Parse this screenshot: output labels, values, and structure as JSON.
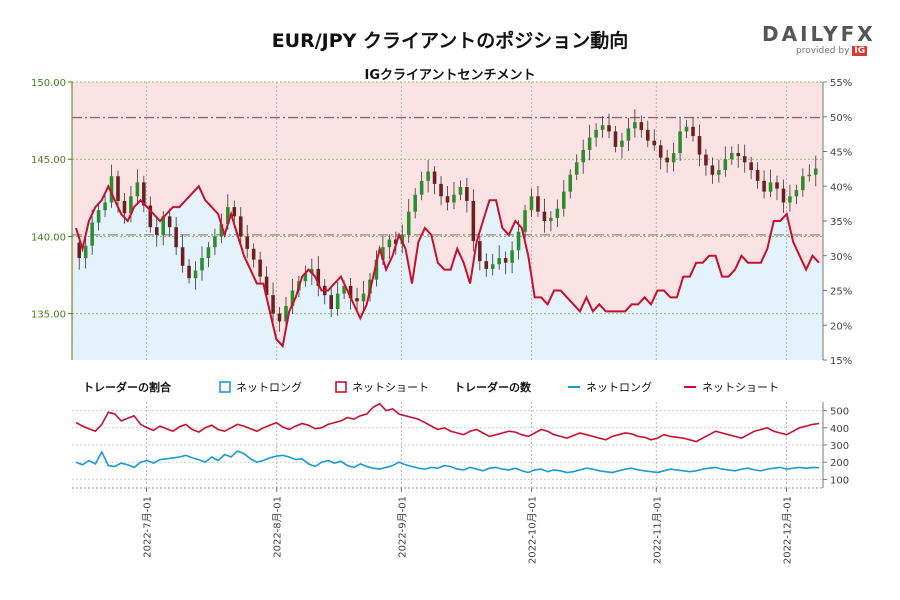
{
  "title": "EUR/JPY クライアントのポジション動向",
  "subtitle": "IGクライアントセンチメント",
  "logo": {
    "wordmark": "DAILYFX",
    "provided_by": "provided by",
    "ig": "IG"
  },
  "colors": {
    "long": "#1a9ad6",
    "short": "#c8102e",
    "candle_up": "#2e8b2e",
    "candle_down": "#6b1f1f",
    "long_area": "#e3f2fb",
    "short_area": "#fbe3e3",
    "price_axis": "#4a7d1f"
  },
  "chart_data": [
    {
      "type": "candlestick+line",
      "title": "IGクライアントセンチメント",
      "left_axis": {
        "ylim": [
          132.0,
          150.0
        ],
        "ticks": [
          "135.00",
          "140.00",
          "145.00",
          "150.00"
        ]
      },
      "right_axis": {
        "ylim": [
          15,
          55
        ],
        "ticks": [
          "15%",
          "20%",
          "25%",
          "30%",
          "35%",
          "40%",
          "45%",
          "50%",
          "55%"
        ]
      },
      "reference_lines": [
        147.7,
        140.1
      ],
      "price_path": [
        139.6,
        138.6,
        139.4,
        140.9,
        141.7,
        142.2,
        143.9,
        142.3,
        141.5,
        142.6,
        143.5,
        142.0,
        140.6,
        140.1,
        141.3,
        140.6,
        139.3,
        138.1,
        137.3,
        137.8,
        138.6,
        139.3,
        140.0,
        140.8,
        141.9,
        141.3,
        140.0,
        139.2,
        138.5,
        137.4,
        136.2,
        135.0,
        134.5,
        135.5,
        136.5,
        137.1,
        137.6,
        137.9,
        136.8,
        136.2,
        135.3,
        136.3,
        136.8,
        136.0,
        135.8,
        136.3,
        137.2,
        138.5,
        139.3,
        139.8,
        139.5,
        140.1,
        141.6,
        142.7,
        143.6,
        144.2,
        143.4,
        142.6,
        142.2,
        142.7,
        143.2,
        142.3,
        139.7,
        138.4,
        137.9,
        138.2,
        138.6,
        138.3,
        139.1,
        140.3,
        141.7,
        142.6,
        141.6,
        141.0,
        141.2,
        141.8,
        142.9,
        144.0,
        144.8,
        145.6,
        146.4,
        146.9,
        147.2,
        146.8,
        145.8,
        146.2,
        147.0,
        147.4,
        146.9,
        146.2,
        145.9,
        145.1,
        144.8,
        145.4,
        146.8,
        147.1,
        146.5,
        145.3,
        144.6,
        144.0,
        144.3,
        145.0,
        145.4,
        145.2,
        144.8,
        144.3,
        143.6,
        142.9,
        143.5,
        143.1,
        142.2,
        142.6,
        143.0,
        143.9,
        144.0,
        144.4
      ],
      "long_pct": [
        34,
        31,
        35,
        37,
        38,
        40,
        38,
        36,
        35,
        37,
        38,
        37,
        36,
        35,
        36,
        37,
        37,
        38,
        39,
        40,
        38,
        37,
        36,
        33,
        36,
        33,
        30,
        28,
        26,
        26,
        22,
        18,
        17,
        22,
        24,
        27,
        28,
        27,
        25,
        25,
        26,
        27,
        25,
        23,
        21,
        23,
        27,
        31,
        28,
        30,
        33,
        31,
        26,
        32,
        34,
        33,
        29,
        28,
        28,
        31,
        29,
        26,
        32,
        35,
        38,
        38,
        34,
        33,
        35,
        34,
        30,
        24,
        24,
        23,
        25,
        25,
        24,
        23,
        22,
        24,
        22,
        23,
        22,
        22,
        22,
        22,
        23,
        23,
        24,
        23,
        25,
        25,
        24,
        24,
        27,
        27,
        29,
        29,
        30,
        30,
        27,
        27,
        28,
        30,
        29,
        29,
        29,
        31,
        35,
        35,
        36,
        32,
        30,
        28,
        30,
        29
      ],
      "short_pct": [
        66,
        69,
        65,
        63,
        62,
        60,
        62,
        64,
        65,
        63,
        62,
        63,
        64,
        65,
        64,
        63,
        63,
        62,
        61,
        60,
        62,
        63,
        64,
        67,
        64,
        67,
        70,
        72,
        74,
        74,
        78,
        82,
        83,
        78,
        76,
        73,
        72,
        73,
        75,
        75,
        74,
        73,
        75,
        77,
        79,
        77,
        73,
        69,
        72,
        70,
        67,
        69,
        74,
        68,
        66,
        67,
        71,
        72,
        72,
        69,
        71,
        74,
        68,
        65,
        62,
        62,
        66,
        67,
        65,
        66,
        70,
        76,
        76,
        77,
        75,
        75,
        76,
        77,
        78,
        76,
        78,
        77,
        78,
        78,
        78,
        78,
        77,
        77,
        76,
        77,
        75,
        75,
        76,
        76,
        73,
        73,
        71,
        71,
        70,
        70,
        73,
        73,
        72,
        70,
        71,
        71,
        71,
        69,
        65,
        65,
        64,
        68,
        70,
        72,
        70,
        71
      ]
    },
    {
      "type": "line",
      "ylim": [
        50,
        550
      ],
      "ticks": [
        "100",
        "200",
        "300",
        "400",
        "500"
      ],
      "series": [
        {
          "name": "ネットロング",
          "values": [
            200,
            185,
            210,
            190,
            260,
            180,
            175,
            195,
            185,
            170,
            200,
            210,
            195,
            215,
            220,
            225,
            230,
            240,
            225,
            215,
            200,
            230,
            210,
            245,
            230,
            265,
            250,
            220,
            200,
            210,
            225,
            235,
            240,
            230,
            215,
            220,
            190,
            175,
            200,
            210,
            195,
            205,
            180,
            170,
            190,
            175,
            165,
            160,
            170,
            180,
            200,
            185,
            175,
            165,
            160,
            170,
            165,
            180,
            175,
            160,
            155,
            170,
            160,
            150,
            165,
            170,
            160,
            155,
            165,
            150,
            140,
            155,
            160,
            145,
            155,
            150,
            140,
            145,
            155,
            165,
            160,
            150,
            145,
            140,
            150,
            160,
            165,
            155,
            150,
            145,
            140,
            150,
            160,
            155,
            150,
            145,
            150,
            160,
            165,
            170,
            160,
            155,
            150,
            160,
            165,
            155,
            150,
            160,
            165,
            170,
            160,
            165,
            170,
            165,
            170,
            168
          ]
        },
        {
          "name": "ネットショート",
          "values": [
            430,
            410,
            395,
            380,
            420,
            490,
            480,
            440,
            455,
            470,
            420,
            400,
            385,
            410,
            395,
            380,
            405,
            420,
            390,
            375,
            400,
            415,
            390,
            380,
            400,
            420,
            410,
            395,
            380,
            400,
            415,
            430,
            405,
            390,
            410,
            425,
            415,
            395,
            400,
            420,
            430,
            440,
            460,
            450,
            470,
            480,
            520,
            540,
            500,
            510,
            480,
            470,
            460,
            450,
            430,
            410,
            390,
            400,
            380,
            370,
            360,
            380,
            390,
            370,
            350,
            360,
            370,
            380,
            375,
            360,
            350,
            370,
            390,
            380,
            360,
            350,
            340,
            355,
            370,
            360,
            350,
            340,
            330,
            350,
            360,
            370,
            365,
            350,
            345,
            330,
            340,
            360,
            350,
            345,
            340,
            330,
            320,
            340,
            360,
            380,
            370,
            360,
            350,
            340,
            360,
            380,
            390,
            400,
            380,
            370,
            360,
            380,
            400,
            410,
            420,
            425
          ]
        }
      ]
    }
  ],
  "legend": {
    "ratio_title": "トレーダーの割合",
    "count_title": "トレーダーの数",
    "net_long": "ネットロング",
    "net_short": "ネットショート"
  },
  "x_axis": {
    "ticks": [
      "2022-7月-01",
      "2022-8月-01",
      "2022-9月-01",
      "2022-10月-01",
      "2022-11月-01",
      "2022-12月-01"
    ]
  }
}
